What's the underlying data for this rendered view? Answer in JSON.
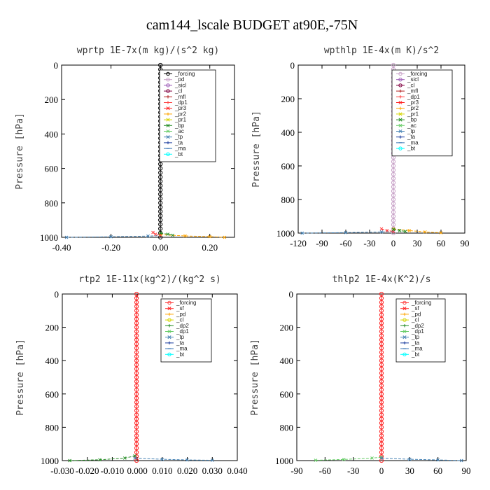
{
  "figure_title": "cam144_lscale  BUDGET at90E,-75N",
  "chart_data": [
    {
      "type": "line",
      "title": "wprtp  1E-7x(m kg)/(s^2 kg)",
      "xlabel": "",
      "ylabel": "Pressure [hPa]",
      "xlim": [
        -0.4,
        0.3
      ],
      "ylim": [
        1000,
        0
      ],
      "x_ticks": [
        "-0.40",
        "-0.20",
        "0.00",
        "0.20"
      ],
      "x_tick_values": [
        -0.4,
        -0.2,
        0.0,
        0.2
      ],
      "y_ticks": [
        "0",
        "200",
        "400",
        "600",
        "800",
        "1000"
      ],
      "legend": [
        {
          "name": "_forcing",
          "color": "#000000",
          "marker": "o"
        },
        {
          "name": "_pd",
          "color": "#c8a2c8",
          "marker": "o"
        },
        {
          "name": "_sicl",
          "color": "#9b59b6",
          "marker": "o"
        },
        {
          "name": "_cl",
          "color": "#800040",
          "marker": "o"
        },
        {
          "name": "_mfl",
          "color": "#b22222",
          "marker": "+"
        },
        {
          "name": "_dp1",
          "color": "#ff4040",
          "marker": "+"
        },
        {
          "name": "_pr3",
          "color": "#ff2020",
          "marker": "x"
        },
        {
          "name": "_pr2",
          "color": "#ffa500",
          "marker": "+"
        },
        {
          "name": "_pr1",
          "color": "#d4d400",
          "marker": "x"
        },
        {
          "name": "_bp",
          "color": "#228b22",
          "marker": "x"
        },
        {
          "name": "_ac",
          "color": "#66cc66",
          "marker": "x"
        },
        {
          "name": "_tp",
          "color": "#4682b4",
          "marker": "x"
        },
        {
          "name": "_ta",
          "color": "#1e3fa0",
          "marker": "+"
        },
        {
          "name": "_ma",
          "color": "#2f6fb0",
          "marker": "-"
        },
        {
          "name": "_bt",
          "color": "#00ffff",
          "marker": "o"
        }
      ],
      "series": [
        {
          "name": "_forcing",
          "color": "#000000",
          "points": [
            [
              0.0,
              0
            ],
            [
              0.0,
              975
            ],
            [
              0.0,
              1000
            ]
          ]
        },
        {
          "name": "_tp",
          "color": "#4682b4",
          "points": [
            [
              -0.38,
              1000
            ],
            [
              -0.2,
              997
            ],
            [
              -0.05,
              993
            ],
            [
              0.0,
              990
            ]
          ]
        },
        {
          "name": "_pr2",
          "color": "#ffa500",
          "points": [
            [
              0.0,
              985
            ],
            [
              0.1,
              992
            ],
            [
              0.2,
              996
            ],
            [
              0.26,
              1000
            ]
          ]
        },
        {
          "name": "_dp1",
          "color": "#ff4040",
          "points": [
            [
              -0.03,
              972
            ],
            [
              -0.02,
              982
            ],
            [
              0.0,
              988
            ]
          ]
        },
        {
          "name": "_bp",
          "color": "#228b22",
          "points": [
            [
              0.0,
              975
            ],
            [
              0.03,
              982
            ],
            [
              0.05,
              988
            ]
          ]
        }
      ]
    },
    {
      "type": "line",
      "title": "wpthlp  1E-4x(m K)/s^2",
      "xlabel": "",
      "ylabel": "Pressure [hPa]",
      "xlim": [
        -120,
        90
      ],
      "ylim": [
        1000,
        0
      ],
      "x_ticks": [
        "-120",
        "-90",
        "-60",
        "-30",
        "0",
        "30",
        "60",
        "90"
      ],
      "x_tick_values": [
        -120,
        -90,
        -60,
        -30,
        0,
        30,
        60,
        90
      ],
      "y_ticks": [
        "0",
        "200",
        "400",
        "600",
        "800",
        "1000"
      ],
      "legend": [
        {
          "name": "_forcing",
          "color": "#c8a2c8",
          "marker": "o"
        },
        {
          "name": "_sicl",
          "color": "#9b59b6",
          "marker": "o"
        },
        {
          "name": "_cl",
          "color": "#800040",
          "marker": "o"
        },
        {
          "name": "_mfl",
          "color": "#b22222",
          "marker": "+"
        },
        {
          "name": "_dp1",
          "color": "#ff4040",
          "marker": "+"
        },
        {
          "name": "_pr3",
          "color": "#ff2020",
          "marker": "x"
        },
        {
          "name": "_pr2",
          "color": "#ffa500",
          "marker": "+"
        },
        {
          "name": "_pr1",
          "color": "#d4d400",
          "marker": "x"
        },
        {
          "name": "_bp",
          "color": "#228b22",
          "marker": "x"
        },
        {
          "name": "_ac",
          "color": "#66cc66",
          "marker": "x"
        },
        {
          "name": "_tp",
          "color": "#4682b4",
          "marker": "x"
        },
        {
          "name": "_ta",
          "color": "#1e3fa0",
          "marker": "+"
        },
        {
          "name": "_ma",
          "color": "#2f6fb0",
          "marker": "-"
        },
        {
          "name": "_bt",
          "color": "#00ffff",
          "marker": "o"
        }
      ],
      "series": [
        {
          "name": "_forcing",
          "color": "#c8a2c8",
          "points": [
            [
              0,
              0
            ],
            [
              0,
              975
            ],
            [
              0,
              1000
            ]
          ]
        },
        {
          "name": "_tp",
          "color": "#4682b4",
          "points": [
            [
              -115,
              1000
            ],
            [
              -60,
              997
            ],
            [
              -15,
              993
            ],
            [
              0,
              990
            ]
          ]
        },
        {
          "name": "_pr2",
          "color": "#ffa500",
          "points": [
            [
              0,
              975
            ],
            [
              20,
              985
            ],
            [
              40,
              993
            ],
            [
              60,
              998
            ]
          ]
        },
        {
          "name": "_dp1",
          "color": "#ff4040",
          "points": [
            [
              -15,
              975
            ],
            [
              -8,
              985
            ],
            [
              0,
              990
            ]
          ]
        },
        {
          "name": "_bp",
          "color": "#228b22",
          "points": [
            [
              0,
              978
            ],
            [
              8,
              985
            ],
            [
              15,
              990
            ]
          ]
        }
      ]
    },
    {
      "type": "line",
      "title": "rtp2  1E-11x(kg^2)/(kg^2 s)",
      "xlabel": "",
      "ylabel": "Pressure [hPa]",
      "xlim": [
        -0.03,
        0.04
      ],
      "ylim": [
        1000,
        0
      ],
      "x_ticks": [
        "-0.030",
        "-0.020",
        "-0.010",
        "0.000",
        "0.010",
        "0.020",
        "0.030",
        "0.040"
      ],
      "x_tick_values": [
        -0.03,
        -0.02,
        -0.01,
        0.0,
        0.01,
        0.02,
        0.03,
        0.04
      ],
      "y_ticks": [
        "0",
        "200",
        "400",
        "600",
        "800",
        "1000"
      ],
      "legend": [
        {
          "name": "_forcing",
          "color": "#ff4040",
          "marker": "o"
        },
        {
          "name": "_sf",
          "color": "#ff2020",
          "marker": "x"
        },
        {
          "name": "_pd",
          "color": "#ffa500",
          "marker": "+"
        },
        {
          "name": "_cl",
          "color": "#d4d400",
          "marker": "o"
        },
        {
          "name": "_dp2",
          "color": "#228b22",
          "marker": "+"
        },
        {
          "name": "_dp1",
          "color": "#66cc66",
          "marker": "x"
        },
        {
          "name": "_tp",
          "color": "#4682b4",
          "marker": "x"
        },
        {
          "name": "_ta",
          "color": "#1e3fa0",
          "marker": "+"
        },
        {
          "name": "_ma",
          "color": "#2f6fb0",
          "marker": "-"
        },
        {
          "name": "_bt",
          "color": "#00ffff",
          "marker": "o"
        }
      ],
      "series": [
        {
          "name": "_forcing",
          "color": "#ff2020",
          "points": [
            [
              -0.0003,
              0
            ],
            [
              -0.0003,
              975
            ],
            [
              -0.0003,
              1000
            ]
          ]
        },
        {
          "name": "_dp2",
          "color": "#228b22",
          "points": [
            [
              -0.027,
              1000
            ],
            [
              -0.015,
              995
            ],
            [
              -0.005,
              985
            ],
            [
              -0.001,
              972
            ]
          ]
        },
        {
          "name": "_tp",
          "color": "#4682b4",
          "points": [
            [
              -0.001,
              985
            ],
            [
              0.01,
              992
            ],
            [
              0.02,
              996
            ],
            [
              0.03,
              998
            ]
          ]
        }
      ]
    },
    {
      "type": "line",
      "title": "thlp2  1E-4x(K^2)/s",
      "xlabel": "",
      "ylabel": "Pressure [hPa]",
      "xlim": [
        -90,
        90
      ],
      "ylim": [
        1000,
        0
      ],
      "x_ticks": [
        "-90",
        "-60",
        "-30",
        "0",
        "30",
        "60",
        "90"
      ],
      "x_tick_values": [
        -90,
        -60,
        -30,
        0,
        30,
        60,
        90
      ],
      "y_ticks": [
        "0",
        "200",
        "400",
        "600",
        "800",
        "1000"
      ],
      "legend": [
        {
          "name": "_forcing",
          "color": "#ff4040",
          "marker": "o"
        },
        {
          "name": "_sf",
          "color": "#ff2020",
          "marker": "x"
        },
        {
          "name": "_pd",
          "color": "#ffa500",
          "marker": "+"
        },
        {
          "name": "_cl",
          "color": "#d4d400",
          "marker": "o"
        },
        {
          "name": "_dp2",
          "color": "#228b22",
          "marker": "+"
        },
        {
          "name": "_dp1",
          "color": "#66cc66",
          "marker": "x"
        },
        {
          "name": "_tp",
          "color": "#4682b4",
          "marker": "x"
        },
        {
          "name": "_ta",
          "color": "#1e3fa0",
          "marker": "+"
        },
        {
          "name": "_ma",
          "color": "#2f6fb0",
          "marker": "-"
        },
        {
          "name": "_bt",
          "color": "#00ffff",
          "marker": "o"
        }
      ],
      "series": [
        {
          "name": "_forcing",
          "color": "#ff2020",
          "points": [
            [
              0,
              0
            ],
            [
              0,
              975
            ],
            [
              0,
              1000
            ]
          ]
        },
        {
          "name": "_dp2",
          "color": "#66cc66",
          "points": [
            [
              -70,
              998
            ],
            [
              -40,
              993
            ],
            [
              -10,
              985
            ],
            [
              0,
              980
            ]
          ]
        },
        {
          "name": "_tp",
          "color": "#4682b4",
          "points": [
            [
              0,
              985
            ],
            [
              30,
              992
            ],
            [
              60,
              996
            ],
            [
              85,
              1000
            ]
          ]
        }
      ]
    }
  ]
}
